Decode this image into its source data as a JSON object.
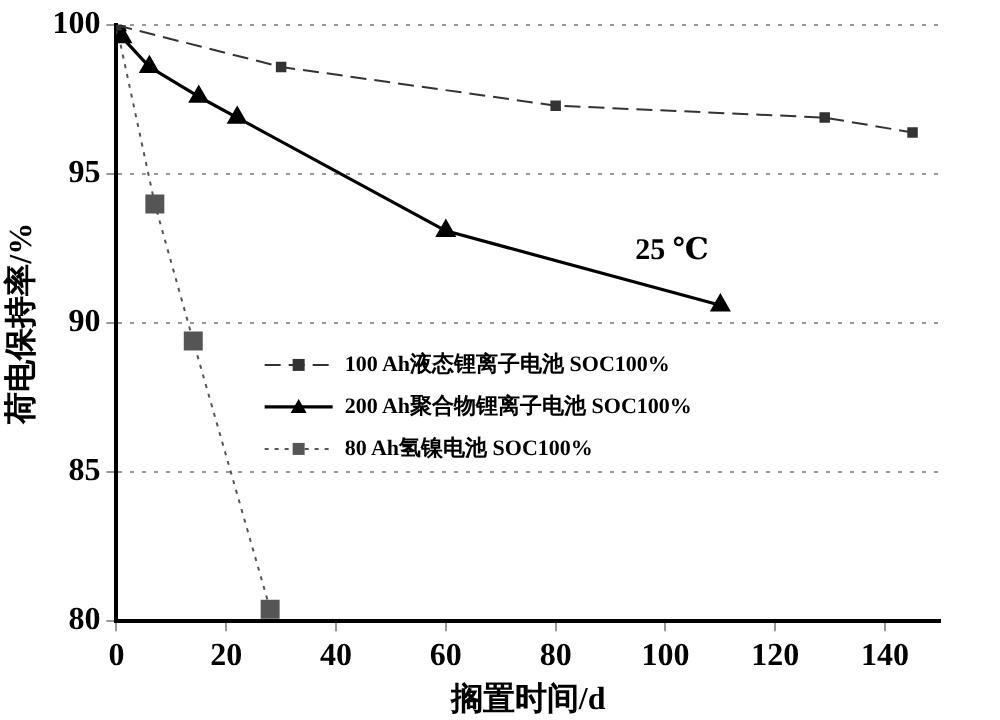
{
  "chart_data": {
    "type": "line",
    "xlabel": "搁置时间/d",
    "ylabel": "荷电保持率/%",
    "xlim": [
      0,
      150
    ],
    "xticks": [
      0,
      20,
      40,
      60,
      80,
      100,
      120,
      140
    ],
    "ylim": [
      80,
      100
    ],
    "yticks": [
      80,
      85,
      90,
      95,
      100
    ],
    "grid": "y",
    "legend": "bottom left",
    "annotations": [
      "25 ℃"
    ],
    "series": [
      {
        "name": "100 Ah液态锂离子电池 SOC100%",
        "color": "#333333",
        "marker": "square",
        "line_style": "dashed",
        "x": [
          0,
          30,
          80,
          129,
          145
        ],
        "values": [
          100,
          98.6,
          97.3,
          96.9,
          96.4
        ]
      },
      {
        "name": "200 Ah聚合物锂离子电池 SOC100%",
        "color": "#000000",
        "marker": "triangle",
        "line_style": "solid",
        "x": [
          0,
          1,
          6,
          15,
          22,
          60,
          110
        ],
        "values": [
          100,
          99.6,
          98.6,
          97.6,
          96.9,
          93.1,
          90.6
        ]
      },
      {
        "name": "80 Ah氢镍电池 SOC100%",
        "color": "#555555",
        "marker": "square",
        "line_style": "dotted",
        "x": [
          0,
          7,
          14,
          28
        ],
        "values": [
          100,
          94.0,
          89.4,
          80.4
        ]
      }
    ]
  }
}
